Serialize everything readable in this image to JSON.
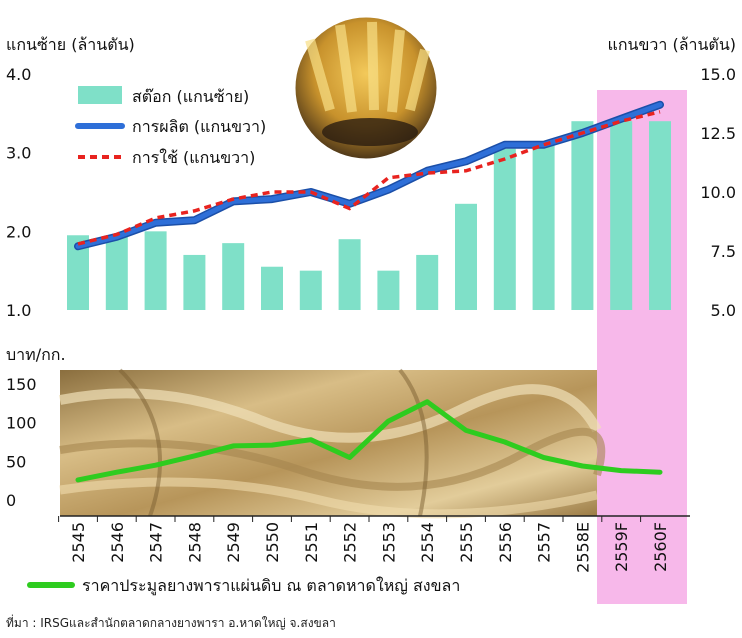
{
  "chart_data": [
    {
      "type": "bar+line",
      "left_axis_title": "แกนซ้าย (ล้านตัน)",
      "right_axis_title": "แกนขวา (ล้านตัน)",
      "left_ticks": [
        "4.0",
        "3.0",
        "2.0",
        "1.0"
      ],
      "right_ticks": [
        "15.0",
        "12.5",
        "10.0",
        "7.5",
        "5.0"
      ],
      "ylim_left": [
        1.0,
        4.0
      ],
      "ylim_right": [
        5.0,
        15.0
      ],
      "categories": [
        "2545",
        "2546",
        "2547",
        "2548",
        "2549",
        "2550",
        "2551",
        "2552",
        "2553",
        "2554",
        "2555",
        "2556",
        "2557",
        "2558E",
        "2559F",
        "2560F"
      ],
      "series": [
        {
          "name": "สต๊อก (แกนซ้าย)",
          "kind": "bar",
          "axis": "left",
          "color": "#7fe0c8",
          "values": [
            1.95,
            1.95,
            2.0,
            1.7,
            1.85,
            1.55,
            1.5,
            1.9,
            1.5,
            1.7,
            2.35,
            3.05,
            3.1,
            3.4,
            3.4,
            3.4
          ]
        },
        {
          "name": "การผลิต (แกนขวา)",
          "kind": "line",
          "axis": "right",
          "color": "#2e6fd8",
          "values": [
            7.7,
            8.1,
            8.7,
            8.8,
            9.6,
            9.7,
            10.0,
            9.5,
            10.1,
            10.9,
            11.3,
            12.0,
            12.0,
            12.5,
            13.1,
            13.7
          ]
        },
        {
          "name": "การใช้ (แกนขวา)",
          "kind": "line",
          "axis": "right",
          "color": "#e8231f",
          "values": [
            7.8,
            8.2,
            8.9,
            9.2,
            9.7,
            10.0,
            10.0,
            9.3,
            10.6,
            10.8,
            10.9,
            11.4,
            12.0,
            12.5,
            13.0,
            13.4
          ]
        }
      ],
      "forecast_highlight": [
        "2559F",
        "2560F"
      ]
    },
    {
      "type": "line",
      "ylabel": "บาท/กก.",
      "y_ticks": [
        "150",
        "100",
        "50",
        "0"
      ],
      "ylim": [
        0,
        150
      ],
      "categories": [
        "2545",
        "2546",
        "2547",
        "2548",
        "2549",
        "2550",
        "2551",
        "2552",
        "2553",
        "2554",
        "2555",
        "2556",
        "2557",
        "2558E",
        "2559F",
        "2560F"
      ],
      "series": [
        {
          "name": "ราคาประมูลยางพาราแผ่นดิบ ณ ตลาดหาดใหญ่ สงขลา",
          "color": "#2ecc1f",
          "values": [
            26,
            36,
            45,
            57,
            70,
            71,
            78,
            55,
            102,
            127,
            90,
            75,
            55,
            44,
            38,
            36
          ]
        }
      ]
    }
  ],
  "footer": "ที่มา : IRSGและสำนักตลาดกลางยางพารา อ.หาดใหญ่ จ.สงขลา",
  "colors": {
    "highlight": "#f7b8ea",
    "bar": "#7fe0c8",
    "production": "#2e6fd8",
    "consumption": "#e8231f",
    "price": "#2ecc1f",
    "photo_tone": "#c9a868"
  }
}
